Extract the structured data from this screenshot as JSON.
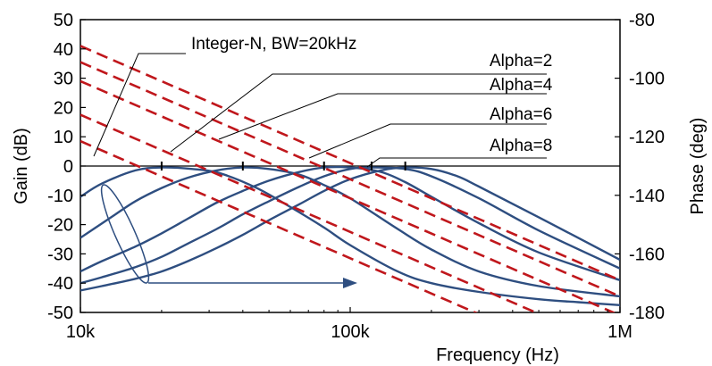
{
  "chart_data": {
    "type": "line",
    "xlabel": "Frequency (Hz)",
    "ylabel_left": "Gain (dB)",
    "ylabel_right": "Phase (deg)",
    "xscale": "log",
    "xlim": [
      10000,
      1000000
    ],
    "ylim_left": [
      -50,
      50
    ],
    "ylim_right": [
      -180,
      -80
    ],
    "x_ticks": [
      {
        "value": 10000,
        "label": "10k"
      },
      {
        "value": 100000,
        "label": "100k"
      },
      {
        "value": 1000000,
        "label": "1M"
      }
    ],
    "y_ticks_left": [
      "50",
      "40",
      "30",
      "20",
      "10",
      "0",
      "-10",
      "-20",
      "-30",
      "-40",
      "-50"
    ],
    "y_ticks_right": [
      "-80",
      "-100",
      "-120",
      "-140",
      "-160",
      "-180"
    ],
    "gain_series": [
      {
        "color": "#c0171c",
        "x": [
          10000,
          1000000
        ],
        "y": [
          8.5,
          -71.5
        ]
      },
      {
        "color": "#c0171c",
        "x": [
          10000,
          1000000
        ],
        "y": [
          17.5,
          -62.5
        ]
      },
      {
        "color": "#c0171c",
        "x": [
          10000,
          1000000
        ],
        "y": [
          29.0,
          -51.0
        ]
      },
      {
        "color": "#c0171c",
        "x": [
          10000,
          1000000
        ],
        "y": [
          35.5,
          -44.5
        ]
      },
      {
        "color": "#c0171c",
        "x": [
          10000,
          1000000
        ],
        "y": [
          41.0,
          -39.0
        ]
      }
    ],
    "phase_series": [
      {
        "color": "#2e4e80",
        "x": [
          10000,
          12000,
          16000,
          20000,
          26000,
          33000,
          45000,
          60000,
          80000,
          100000,
          150000,
          200000,
          300000,
          500000,
          700000,
          1000000
        ],
        "y": [
          -140.5,
          -136.0,
          -131.5,
          -130.5,
          -131.0,
          -132.5,
          -137.5,
          -144.0,
          -151.0,
          -157.0,
          -166.0,
          -170.0,
          -173.0,
          -175.5,
          -176.5,
          -177.5
        ]
      },
      {
        "color": "#2e4e80",
        "x": [
          10000,
          13000,
          16000,
          20000,
          25000,
          32000,
          40000,
          50000,
          65000,
          80000,
          100000,
          150000,
          200000,
          300000,
          500000,
          1000000
        ],
        "y": [
          -154.5,
          -147.5,
          -142.0,
          -137.5,
          -134.0,
          -131.5,
          -130.5,
          -131.0,
          -133.0,
          -136.5,
          -141.0,
          -151.5,
          -158.5,
          -166.0,
          -171.0,
          -174.5
        ]
      },
      {
        "color": "#2e4e80",
        "x": [
          10000,
          12000,
          16000,
          20000,
          25000,
          32000,
          40000,
          50000,
          65000,
          80000,
          100000,
          130000,
          160000,
          200000,
          300000,
          500000,
          1000000
        ],
        "y": [
          -166.0,
          -162.5,
          -157.5,
          -153.0,
          -148.0,
          -142.5,
          -138.5,
          -135.0,
          -132.0,
          -130.5,
          -130.5,
          -132.0,
          -135.5,
          -140.5,
          -149.5,
          -159.5,
          -169.0
        ]
      },
      {
        "color": "#2e4e80",
        "x": [
          10000,
          12000,
          16000,
          20000,
          25000,
          32000,
          40000,
          50000,
          65000,
          80000,
          100000,
          120000,
          160000,
          200000,
          300000,
          500000,
          1000000
        ],
        "y": [
          -170.0,
          -168.0,
          -164.5,
          -161.0,
          -156.5,
          -151.5,
          -146.5,
          -142.0,
          -137.0,
          -133.5,
          -131.0,
          -130.5,
          -131.0,
          -133.5,
          -141.0,
          -152.0,
          -165.0
        ]
      },
      {
        "color": "#2e4e80",
        "x": [
          10000,
          12000,
          16000,
          20000,
          25000,
          32000,
          40000,
          50000,
          65000,
          80000,
          100000,
          130000,
          160000,
          200000,
          250000,
          300000,
          500000,
          1000000
        ],
        "y": [
          -172.5,
          -171.0,
          -168.5,
          -166.0,
          -162.5,
          -158.0,
          -153.5,
          -148.5,
          -143.0,
          -138.5,
          -134.5,
          -131.5,
          -130.5,
          -131.0,
          -133.5,
          -137.0,
          -147.5,
          -162.0
        ]
      }
    ],
    "bandwidth_markers": [
      {
        "x": 20000,
        "y": 0
      },
      {
        "x": 40000,
        "y": 0
      },
      {
        "x": 80000,
        "y": 0
      },
      {
        "x": 120000,
        "y": 0
      },
      {
        "x": 160000,
        "y": 0
      }
    ],
    "annotations": [
      {
        "text": "Integer-N, BW=20kHz"
      },
      {
        "text": "Alpha=2"
      },
      {
        "text": "Alpha=4"
      },
      {
        "text": "Alpha=6"
      },
      {
        "text": "Alpha=8"
      }
    ]
  }
}
